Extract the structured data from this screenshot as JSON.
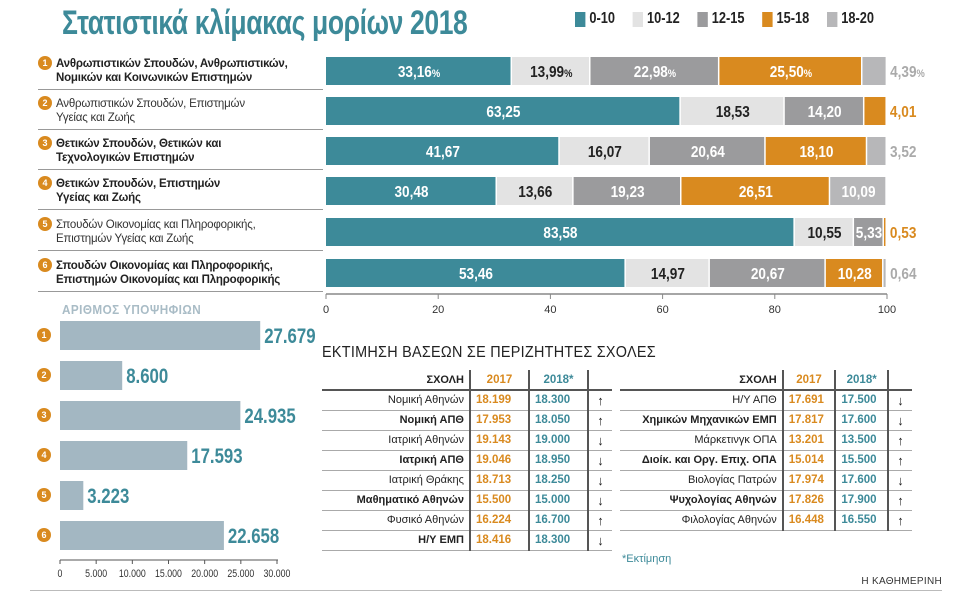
{
  "title": "Στατιστικά κλίμακας μορίων 2018",
  "colors": {
    "0-10": "#3d8a99",
    "10-12": "#e3e3e3",
    "12-15": "#9b9b9d",
    "15-18": "#d98a1f",
    "18-20": "#b7b7b9",
    "badge": "#d98a1f",
    "candidate_bar": "#a3b7c2"
  },
  "legend": [
    "0-10",
    "10-12",
    "12-15",
    "15-18",
    "18-20"
  ],
  "categories": [
    {
      "num": "1",
      "line1": "Ανθρωπιστικών Σπουδών, Ανθρωπιστικών,",
      "line2": "Νομικών και Κοινωνικών Επιστημών",
      "bold": true
    },
    {
      "num": "2",
      "line1": "Ανθρωπιστικών Σπουδών, Επιστημών",
      "line2": "Υγείας και Ζωής",
      "bold": false
    },
    {
      "num": "3",
      "line1": "Θετικών Σπουδών, Θετικών και",
      "line2": "Τεχνολογικών Επιστημών",
      "bold": true
    },
    {
      "num": "4",
      "line1": "Θετικών Σπουδών, Επιστημών",
      "line2": "Υγείας και Ζωής",
      "bold": true
    },
    {
      "num": "5",
      "line1": "Σπουδών Οικονομίας και Πληροφορικής,",
      "line2": "Επιστημών Υγείας και Ζωής",
      "bold": false
    },
    {
      "num": "6",
      "line1": "Σπουδών Οικονομίας και Πληροφορικής,",
      "line2": "Επιστημών Οικονομίας και Πληροφορικής",
      "bold": true
    }
  ],
  "chart_data": [
    {
      "type": "bar",
      "stacked": true,
      "orientation": "horizontal",
      "title": "Στατιστικά κλίμακας μορίων 2018",
      "categories": [
        "1",
        "2",
        "3",
        "4",
        "5",
        "6"
      ],
      "series": [
        {
          "name": "0-10",
          "values": [
            33.16,
            63.25,
            41.67,
            30.48,
            83.58,
            53.46
          ],
          "labels": [
            "33,16%",
            "63,25",
            "41,67",
            "30,48",
            "83,58",
            "53,46"
          ]
        },
        {
          "name": "10-12",
          "values": [
            13.99,
            18.53,
            16.07,
            13.66,
            10.55,
            14.97
          ],
          "labels": [
            "13,99%",
            "18,53",
            "16,07",
            "13,66",
            "10,55",
            "14,97"
          ]
        },
        {
          "name": "12-15",
          "values": [
            22.98,
            14.2,
            20.64,
            19.23,
            5.33,
            20.67
          ],
          "labels": [
            "22,98%",
            "14,20",
            "20,64",
            "19,23",
            "5,33",
            "20,67"
          ]
        },
        {
          "name": "15-18",
          "values": [
            25.5,
            4.01,
            18.1,
            26.51,
            0.53,
            10.28
          ],
          "labels": [
            "25,50%",
            "4,01",
            "18,10",
            "26,51",
            "0,53",
            "10,28"
          ]
        },
        {
          "name": "18-20",
          "values": [
            4.39,
            0,
            3.52,
            10.09,
            0,
            0.64
          ],
          "labels": [
            "4,39%",
            "",
            "3,52",
            "10,09",
            "",
            "0,64"
          ]
        }
      ],
      "xlim": [
        0,
        100
      ],
      "xticks": [
        "0",
        "20",
        "40",
        "60",
        "80",
        "100"
      ],
      "legend_placement": "top-right"
    },
    {
      "type": "bar",
      "orientation": "horizontal",
      "title": "ΑΡΙΘΜΟΣ ΥΠΟΨΗΦΙΩΝ",
      "categories": [
        "1",
        "2",
        "3",
        "4",
        "5",
        "6"
      ],
      "values": [
        27679,
        8600,
        24935,
        17593,
        3223,
        22658
      ],
      "labels": [
        "27.679",
        "8.600",
        "24.935",
        "17.593",
        "3.223",
        "22.658"
      ],
      "xlim": [
        0,
        30000
      ],
      "xticks": [
        "0",
        "5.000",
        "10.000",
        "15.000",
        "20.000",
        "25.000",
        "30.000"
      ]
    }
  ],
  "table_title": "ΕΚΤΙΜΗΣΗ ΒΑΣΕΩΝ ΣΕ ΠΕΡΙΖΗΤΗΤΕΣ ΣΧΟΛΕΣ",
  "table_headers": {
    "school": "ΣΧΟΛΗ",
    "y2017": "2017",
    "y2018": "2018*"
  },
  "table_left": [
    {
      "school": "Νομική Αθηνών",
      "v2017": "18.199",
      "v2018": "18.300",
      "trend": "↑",
      "bold": false
    },
    {
      "school": "Νομική ΑΠΘ",
      "v2017": "17.953",
      "v2018": "18.050",
      "trend": "↑",
      "bold": true
    },
    {
      "school": "Ιατρική Αθηνών",
      "v2017": "19.143",
      "v2018": "19.000",
      "trend": "↓",
      "bold": false
    },
    {
      "school": "Ιατρική ΑΠΘ",
      "v2017": "19.046",
      "v2018": "18.950",
      "trend": "↓",
      "bold": true
    },
    {
      "school": "Ιατρική Θράκης",
      "v2017": "18.713",
      "v2018": "18.250",
      "trend": "↓",
      "bold": false
    },
    {
      "school": "Μαθηματικό Αθηνών",
      "v2017": "15.500",
      "v2018": "15.000",
      "trend": "↓",
      "bold": true
    },
    {
      "school": "Φυσικό Αθηνών",
      "v2017": "16.224",
      "v2018": "16.700",
      "trend": "↑",
      "bold": false
    },
    {
      "school": "Η/Υ ΕΜΠ",
      "v2017": "18.416",
      "v2018": "18.300",
      "trend": "↓",
      "bold": true
    }
  ],
  "table_right": [
    {
      "school": "Η/Υ ΑΠΘ",
      "v2017": "17.691",
      "v2018": "17.500",
      "trend": "↓",
      "bold": false
    },
    {
      "school": "Χημικών Μηχανικών ΕΜΠ",
      "v2017": "17.817",
      "v2018": "17.600",
      "trend": "↓",
      "bold": true
    },
    {
      "school": "Μάρκετινγκ ΟΠΑ",
      "v2017": "13.201",
      "v2018": "13.500",
      "trend": "↑",
      "bold": false
    },
    {
      "school": "Διοίκ. και Οργ. Επιχ. ΟΠΑ",
      "v2017": "15.014",
      "v2018": "15.500",
      "trend": "↑",
      "bold": true
    },
    {
      "school": "Βιολογίας Πατρών",
      "v2017": "17.974",
      "v2018": "17.600",
      "trend": "↓",
      "bold": false
    },
    {
      "school": "Ψυχολογίας Αθηνών",
      "v2017": "17.826",
      "v2018": "17.900",
      "trend": "↑",
      "bold": true
    },
    {
      "school": "Φιλολογίας Αθηνών",
      "v2017": "16.448",
      "v2018": "16.550",
      "trend": "↑",
      "bold": false
    }
  ],
  "note": "*Εκτίμηση",
  "credit": "Η ΚΑΘΗΜΕΡΙΝΗ"
}
